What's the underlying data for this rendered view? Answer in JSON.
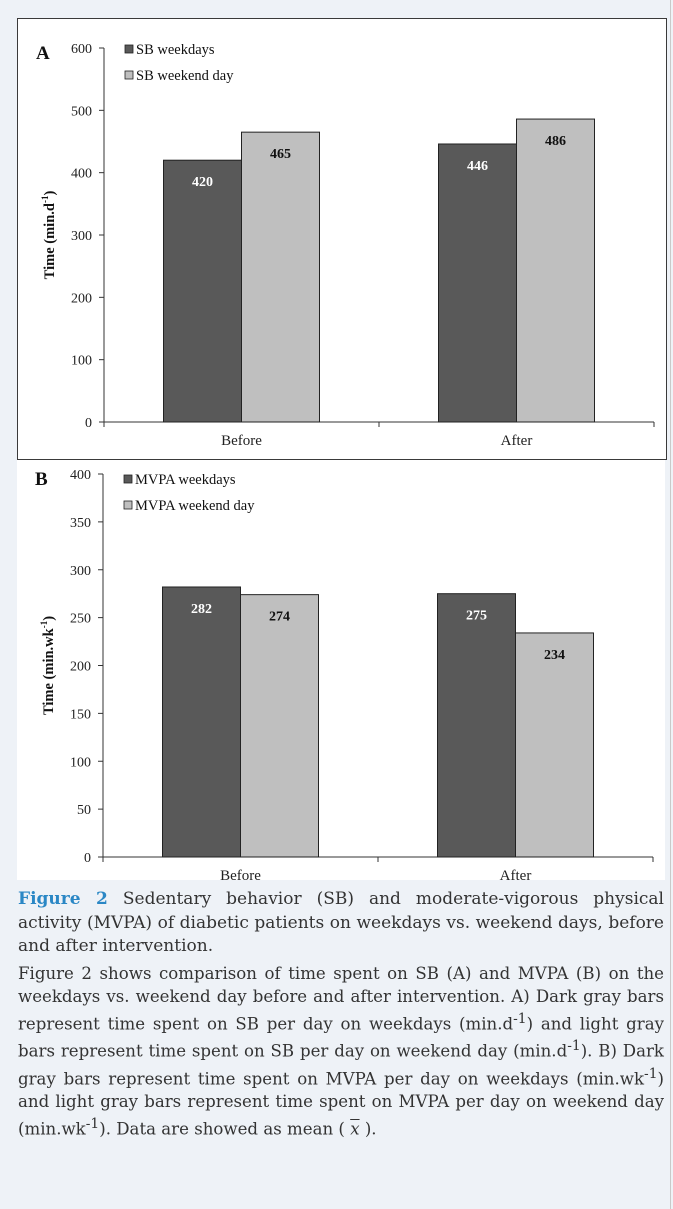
{
  "chart_data": [
    {
      "type": "bar",
      "panel_letter": "A",
      "categories": [
        "Before",
        "After"
      ],
      "series": [
        {
          "name": "SB weekdays",
          "values": [
            420,
            446
          ],
          "color": "#595959"
        },
        {
          "name": "SB weekend day",
          "values": [
            465,
            486
          ],
          "color": "#bfbfbf"
        }
      ],
      "data_labels": [
        [
          "420",
          "446"
        ],
        [
          "465",
          "486"
        ]
      ],
      "ylabel": "Time (min.d",
      "ylabel_sup": "-1",
      "ylabel_end": ")",
      "ylim": [
        0,
        600
      ],
      "yticks": [
        0,
        100,
        200,
        300,
        400,
        500,
        600
      ],
      "grid": false,
      "legend_position": "top-left"
    },
    {
      "type": "bar",
      "panel_letter": "B",
      "categories": [
        "Before",
        "After"
      ],
      "series": [
        {
          "name": "MVPA weekdays",
          "values": [
            282,
            275
          ],
          "color": "#595959"
        },
        {
          "name": "MVPA weekend day",
          "values": [
            274,
            234
          ],
          "color": "#bfbfbf"
        }
      ],
      "data_labels": [
        [
          "282",
          "275"
        ],
        [
          "274",
          "234"
        ]
      ],
      "ylabel": "Time (min.wk",
      "ylabel_sup": "-1",
      "ylabel_end": ")",
      "ylim": [
        0,
        400
      ],
      "yticks": [
        0,
        50,
        100,
        150,
        200,
        250,
        300,
        350,
        400
      ],
      "grid": false,
      "legend_position": "top-left"
    }
  ],
  "caption": {
    "label": "Figure 2",
    "title": " Sedentary behavior (SB) and moderate-vigorous physical activity (MVPA) of diabetic patients on weekdays vs. weekend days, before and after intervention.",
    "desc": {
      "p1": "Figure 2 shows comparison of time spent on SB (A) and MVPA (B) on the weekdays vs. weekend day before and after intervention. A) Dark gray bars represent time spent on SB per day on weekdays (min.d",
      "sup1": "-1",
      "p2": ") and light gray bars represent time spent on SB per day on weekend day (min.d",
      "sup2": "-1",
      "p3": "). B) Dark gray bars represent time spent on MVPA per day on weekdays (min.wk",
      "sup3": "-1",
      "p4": ") and light gray bars represent time spent on MVPA per day on weekend day (min.wk",
      "sup4": "-1",
      "p5": "). Data are showed as mean (",
      "xbar": "x",
      "p6": ")."
    }
  }
}
